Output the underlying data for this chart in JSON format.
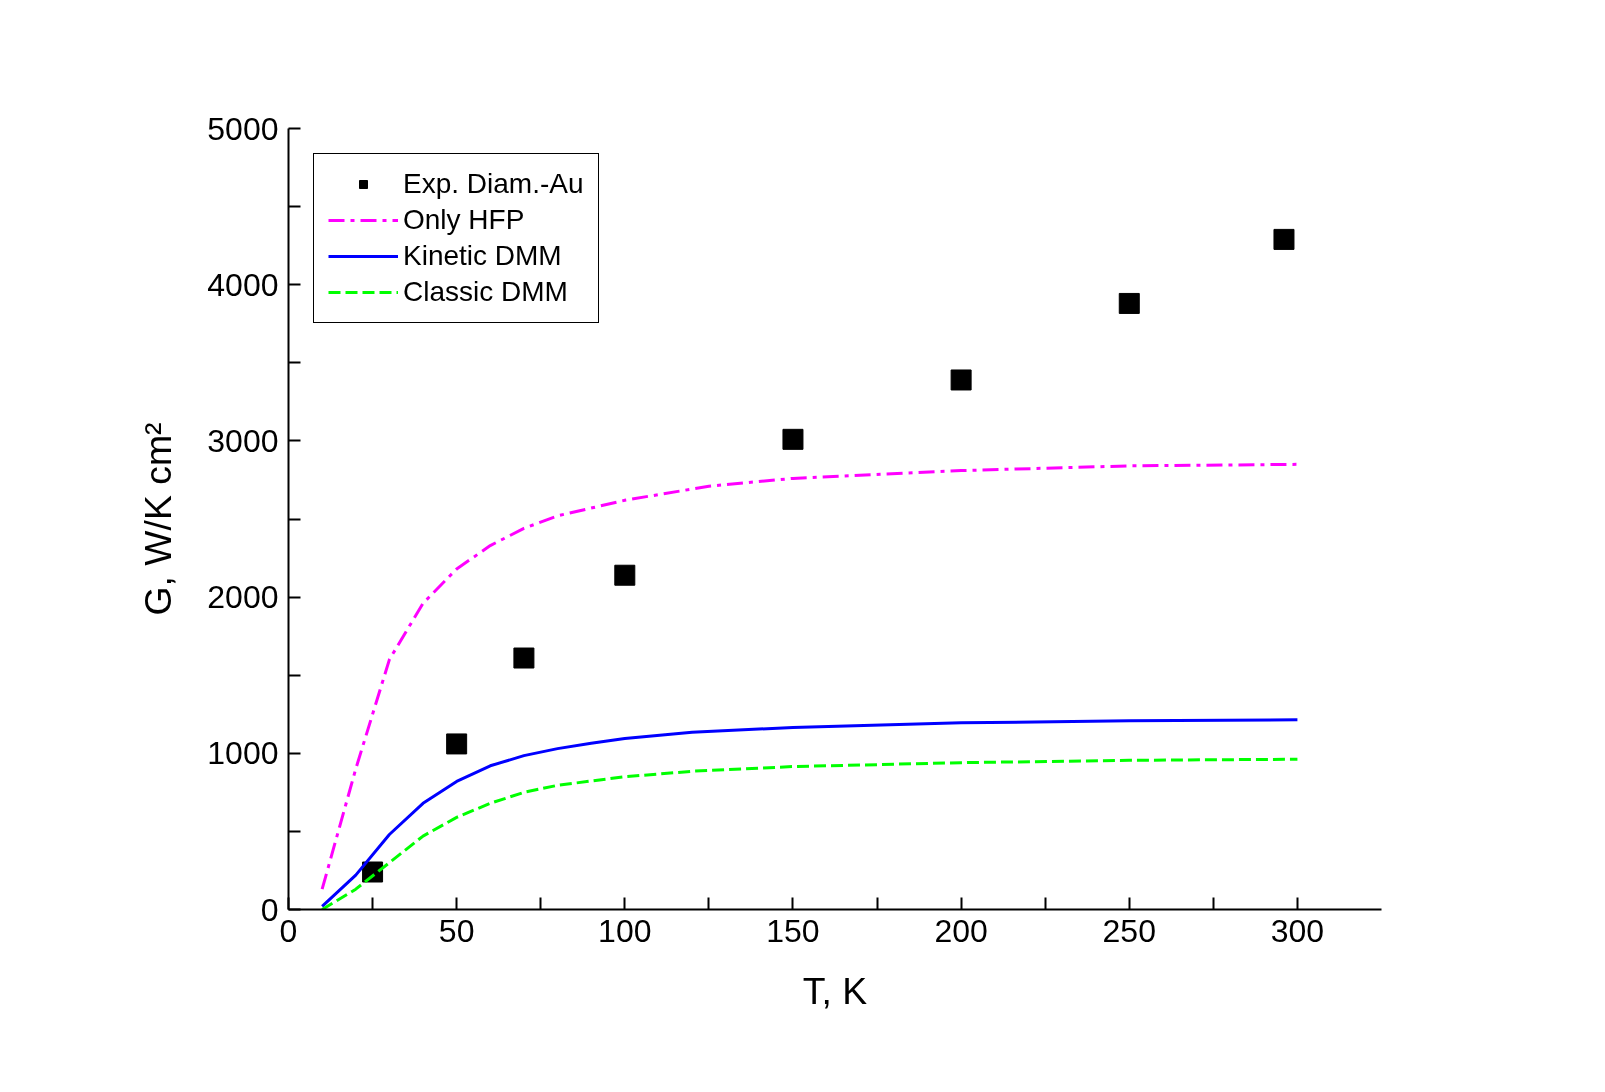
{
  "chart_data": {
    "type": "line",
    "xlabel": "T, K",
    "ylabel": "G, W/K cm²",
    "xlim": [
      0,
      325
    ],
    "ylim": [
      0,
      5000
    ],
    "xticks": [
      0,
      {
        "value": 25,
        "label": null
      },
      50,
      {
        "value": 75,
        "label": null
      },
      100,
      {
        "value": 125,
        "label": null
      },
      150,
      {
        "value": 175,
        "label": null
      },
      200,
      {
        "value": 225,
        "label": null
      },
      250,
      {
        "value": 275,
        "label": null
      },
      300
    ],
    "yticks": [
      0,
      {
        "value": 500,
        "label": null
      },
      1000,
      {
        "value": 1500,
        "label": null
      },
      2000,
      {
        "value": 2500,
        "label": null
      },
      3000,
      {
        "value": 3500,
        "label": null
      },
      4000,
      {
        "value": 4500,
        "label": null
      },
      5000
    ],
    "grid": false,
    "legend": "top left",
    "series": [
      {
        "name": "Exp. Diam.-Au",
        "type": "scatter",
        "marker": "square",
        "color": "#000000",
        "x": [
          25,
          50,
          70,
          100,
          150,
          200,
          250,
          296
        ],
        "values": [
          240,
          1060,
          1610,
          2140,
          3010,
          3390,
          3880,
          4290
        ]
      },
      {
        "name": "Only HFP",
        "line_style": "dashdot",
        "color": "#ff00ff",
        "x": [
          10,
          20,
          30,
          40,
          50,
          60,
          70,
          80,
          100,
          125,
          150,
          200,
          250,
          300
        ],
        "values": [
          130,
          900,
          1600,
          1960,
          2180,
          2330,
          2440,
          2520,
          2620,
          2710,
          2760,
          2810,
          2840,
          2850
        ]
      },
      {
        "name": "Kinetic DMM",
        "line_style": "solid",
        "color": "#0000ff",
        "x": [
          10,
          20,
          30,
          40,
          50,
          60,
          70,
          80,
          90,
          100,
          120,
          150,
          200,
          250,
          300
        ],
        "values": [
          20,
          220,
          480,
          680,
          820,
          920,
          985,
          1030,
          1065,
          1095,
          1135,
          1165,
          1195,
          1208,
          1215
        ]
      },
      {
        "name": "Classic DMM",
        "line_style": "dashed",
        "color": "#00ff00",
        "x": [
          10,
          20,
          30,
          40,
          50,
          60,
          70,
          80,
          100,
          120,
          150,
          200,
          250,
          300
        ],
        "values": [
          0,
          130,
          300,
          470,
          590,
          680,
          750,
          795,
          850,
          885,
          915,
          940,
          955,
          962
        ]
      }
    ]
  }
}
